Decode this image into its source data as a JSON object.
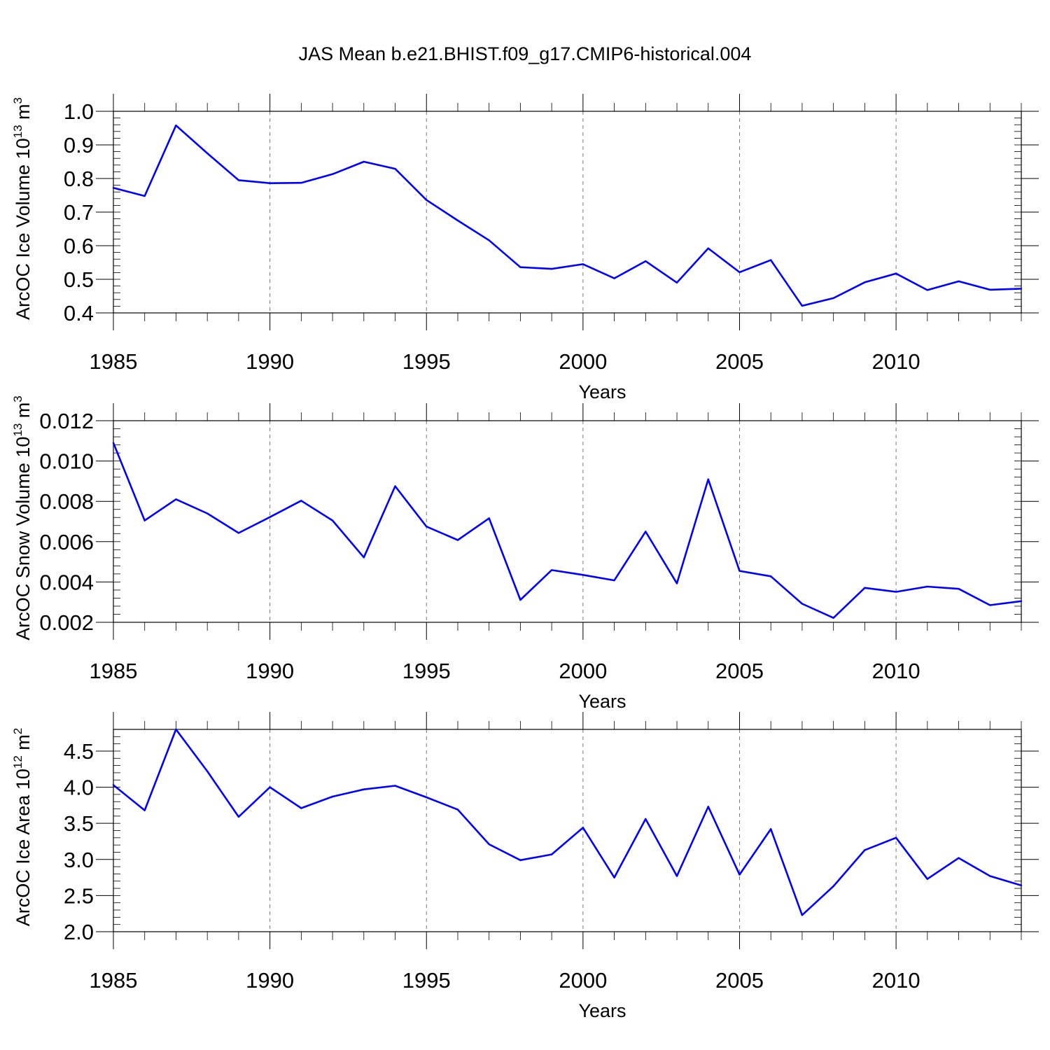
{
  "title": "JAS Mean b.e21.BHIST.f09_g17.CMIP6-historical.004",
  "colors": {
    "line": "#0000ff",
    "axis": "#000000",
    "grid": "#777777"
  },
  "chart_data": [
    {
      "type": "line",
      "name": "ice-volume",
      "ylabel": "ArcOC Ice Volume 10",
      "ylabel_exp": "13",
      "ylabel_unit": " m",
      "ylabel_unit_exp": "3",
      "xlabel": "Years",
      "xlim": [
        1985,
        2014
      ],
      "ylim": [
        0.4,
        1.0
      ],
      "xticks": [
        1985,
        1990,
        1995,
        2000,
        2005,
        2010
      ],
      "xtick_labels": [
        "1985",
        "1990",
        "1995",
        "2000",
        "2005",
        "2010"
      ],
      "yticks": [
        0.4,
        0.5,
        0.6,
        0.7,
        0.8,
        0.9,
        1.0
      ],
      "ytick_labels": [
        "0.4",
        "0.5",
        "0.6",
        "0.7",
        "0.8",
        "0.9",
        "1.0"
      ],
      "x": [
        1985,
        1986,
        1987,
        1988,
        1989,
        1990,
        1991,
        1992,
        1993,
        1994,
        1995,
        1996,
        1997,
        1998,
        1999,
        2000,
        2001,
        2002,
        2003,
        2004,
        2005,
        2006,
        2007,
        2008,
        2009,
        2010,
        2011,
        2012,
        2013,
        2014
      ],
      "values": [
        0.772,
        0.748,
        0.958,
        0.875,
        0.795,
        0.786,
        0.787,
        0.813,
        0.85,
        0.829,
        0.736,
        0.675,
        0.616,
        0.536,
        0.531,
        0.545,
        0.503,
        0.554,
        0.49,
        0.592,
        0.521,
        0.557,
        0.421,
        0.444,
        0.491,
        0.517,
        0.468,
        0.494,
        0.469,
        0.472
      ]
    },
    {
      "type": "line",
      "name": "snow-volume",
      "ylabel": "ArcOC Snow Volume 10",
      "ylabel_exp": "13",
      "ylabel_unit": " m",
      "ylabel_unit_exp": "3",
      "xlabel": "Years",
      "xlim": [
        1985,
        2014
      ],
      "ylim": [
        0.002,
        0.012
      ],
      "xticks": [
        1985,
        1990,
        1995,
        2000,
        2005,
        2010
      ],
      "xtick_labels": [
        "1985",
        "1990",
        "1995",
        "2000",
        "2005",
        "2010"
      ],
      "yticks": [
        0.002,
        0.004,
        0.006,
        0.008,
        0.01,
        0.012
      ],
      "ytick_labels": [
        "0.002",
        "0.004",
        "0.006",
        "0.008",
        "0.010",
        "0.012"
      ],
      "x": [
        1985,
        1986,
        1987,
        1988,
        1989,
        1990,
        1991,
        1992,
        1993,
        1994,
        1995,
        1996,
        1997,
        1998,
        1999,
        2000,
        2001,
        2002,
        2003,
        2004,
        2005,
        2006,
        2007,
        2008,
        2009,
        2010,
        2011,
        2012,
        2013,
        2014
      ],
      "values": [
        0.0109,
        0.00705,
        0.0081,
        0.0074,
        0.00643,
        0.00722,
        0.00803,
        0.00705,
        0.00522,
        0.00875,
        0.00675,
        0.00608,
        0.00716,
        0.00311,
        0.00459,
        0.00435,
        0.00408,
        0.0065,
        0.00393,
        0.00909,
        0.00455,
        0.00428,
        0.00292,
        0.00222,
        0.00371,
        0.00351,
        0.00377,
        0.00366,
        0.00285,
        0.00305
      ]
    },
    {
      "type": "line",
      "name": "ice-area",
      "ylabel": "ArcOC Ice Area 10",
      "ylabel_exp": "12",
      "ylabel_unit": " m",
      "ylabel_unit_exp": "2",
      "xlabel": "Years",
      "xlim": [
        1985,
        2014
      ],
      "ylim": [
        2.0,
        4.8
      ],
      "xticks": [
        1985,
        1990,
        1995,
        2000,
        2005,
        2010
      ],
      "xtick_labels": [
        "1985",
        "1990",
        "1995",
        "2000",
        "2005",
        "2010"
      ],
      "yticks": [
        2.0,
        2.5,
        3.0,
        3.5,
        4.0,
        4.5
      ],
      "ytick_labels": [
        "2.0",
        "2.5",
        "3.0",
        "3.5",
        "4.0",
        "4.5"
      ],
      "x": [
        1985,
        1986,
        1987,
        1988,
        1989,
        1990,
        1991,
        1992,
        1993,
        1994,
        1995,
        1996,
        1997,
        1998,
        1999,
        2000,
        2001,
        2002,
        2003,
        2004,
        2005,
        2006,
        2007,
        2008,
        2009,
        2010,
        2011,
        2012,
        2013,
        2014
      ],
      "values": [
        4.03,
        3.68,
        4.8,
        4.22,
        3.59,
        4.0,
        3.71,
        3.87,
        3.97,
        4.02,
        3.86,
        3.69,
        3.21,
        2.99,
        3.07,
        3.44,
        2.75,
        3.56,
        2.77,
        3.73,
        2.79,
        3.42,
        2.23,
        2.63,
        3.13,
        3.3,
        2.73,
        3.02,
        2.77,
        2.64
      ]
    }
  ]
}
